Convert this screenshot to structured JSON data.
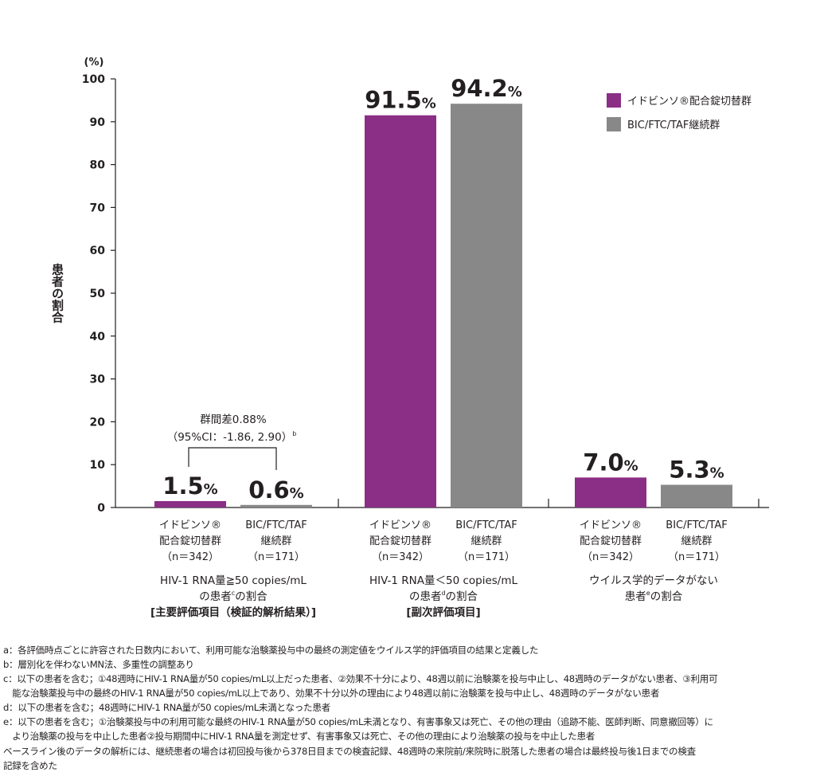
{
  "chart_data": {
    "type": "bar",
    "y_unit_label": "(%)",
    "ylabel": "患者の割合",
    "ylim": [
      0,
      100
    ],
    "yticks": [
      0,
      10,
      20,
      30,
      40,
      50,
      60,
      70,
      80,
      90,
      100
    ],
    "grid": false,
    "legend_position": "top-right",
    "colors": {
      "switch": "#8b2e85",
      "continue": "#888888"
    },
    "series": [
      {
        "name": "イドビンソ®配合錠切替群",
        "values": [
          1.5,
          91.5,
          7.0
        ],
        "value_labels": [
          "1.5",
          "91.5",
          "7.0"
        ]
      },
      {
        "name": "BIC/FTC/TAF継続群",
        "values": [
          0.6,
          94.2,
          5.3
        ],
        "value_labels": [
          "0.6",
          "94.2",
          "5.3"
        ]
      }
    ],
    "value_suffix": "%",
    "bar_labels": [
      [
        "イドビンソ®",
        "配合錠切替群",
        "（n＝342）"
      ],
      [
        "BIC/FTC/TAF",
        "継続群",
        "（n＝171）"
      ]
    ],
    "categories": [
      {
        "lines": [
          {
            "pre": "HIV-1 RNA量≧50 copies/mL",
            "sup": "",
            "post": ""
          },
          {
            "pre": "の患者",
            "sup": "c",
            "post": "の割合"
          },
          {
            "pre": "[主要評価項目（検証的解析結果）]",
            "sup": "",
            "post": "",
            "bold": true
          }
        ]
      },
      {
        "lines": [
          {
            "pre": "HIV-1 RNA量＜50 copies/mL",
            "sup": "",
            "post": ""
          },
          {
            "pre": "の患者",
            "sup": "d",
            "post": "の割合"
          },
          {
            "pre": "[副次評価項目]",
            "sup": "",
            "post": "",
            "bold": true
          }
        ]
      },
      {
        "lines": [
          {
            "pre": "ウイルス学的データがない",
            "sup": "",
            "post": ""
          },
          {
            "pre": "患者",
            "sup": "e",
            "post": "の割合"
          }
        ]
      }
    ],
    "annotation": {
      "line1": "群間差0.88%",
      "line2": "（95%CI：-1.86, 2.90）",
      "sup": "b"
    }
  },
  "footnotes": [
    "a：各評価時点ごとに許容された日数内において、利用可能な治験薬投与中の最終の測定値をウイルス学的評価項目の結果と定義した",
    "b：層別化を伴わないMN法、多重性の調整あり",
    "c：以下の患者を含む；①48週時にHIV-1 RNA量が50 copies/mL以上だった患者、②効果不十分により、48週以前に治験薬を投与中止し、48週時のデータがない患者、③利用可",
    "　能な治験薬投与中の最終のHIV-1 RNA量が50 copies/mL以上であり、効果不十分以外の理由により48週以前に治験薬を投与中止し、48週時のデータがない患者",
    "d：以下の患者を含む；48週時にHIV-1 RNA量が50 copies/mL未満となった患者",
    "e：以下の患者を含む；①治験薬投与中の利用可能な最終のHIV-1 RNA量が50 copies/mL未満となり、有害事象又は死亡、その他の理由（追跡不能、医師判断、同意撤回等）に",
    "　より治験薬の投与を中止した患者②投与期間中にHIV-1 RNA量を測定せず、有害事象又は死亡、その他の理由により治験薬の投与を中止した患者",
    "ベースライン後のデータの解析には、継続患者の場合は初回投与後から378日目までの検査記録、48週時の来院前/来院時に脱落した患者の場合は最終投与後1日までの検査",
    "記録を含めた"
  ]
}
